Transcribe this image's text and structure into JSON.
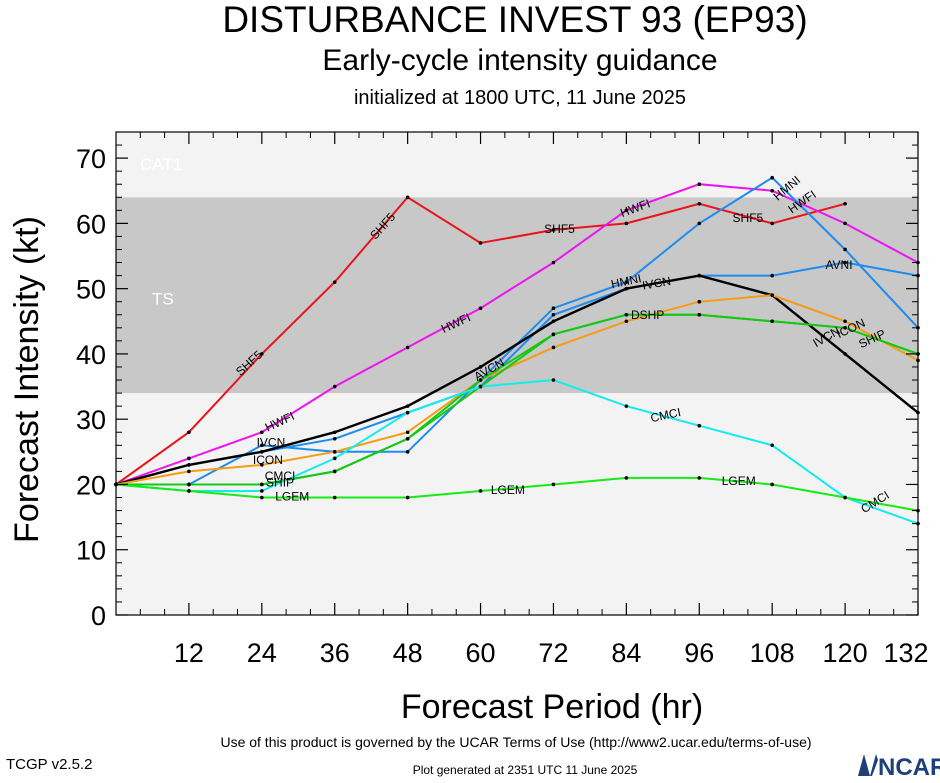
{
  "header": {
    "title": "DISTURBANCE INVEST 93 (EP93)",
    "subtitle": "Early-cycle intensity guidance",
    "init": "initialized at 1800 UTC, 11 June 2025"
  },
  "footer": {
    "terms": "Use of this product is governed by the UCAR Terms of Use (http://www2.ucar.edu/terms-of-use)",
    "version": "TCGP v2.5.2",
    "generated": "Plot generated at 2351 UTC   11 June 2025",
    "logo_text": "NCAR"
  },
  "chart_data": {
    "type": "line",
    "title": "DISTURBANCE INVEST 93 (EP93)",
    "xlabel": "Forecast Period (hr)",
    "ylabel": "Forecast Intensity (kt)",
    "xlim": [
      0,
      132
    ],
    "ylim": [
      0,
      70
    ],
    "xticks": [
      12,
      24,
      36,
      48,
      60,
      72,
      84,
      96,
      108,
      120,
      132
    ],
    "yticks": [
      0,
      10,
      20,
      30,
      40,
      50,
      60,
      70
    ],
    "bands": [
      {
        "label": "TS",
        "from": 34,
        "to": 64,
        "color": "#c8c8c8"
      },
      {
        "label": "CAT1",
        "from": 64,
        "to": 83,
        "color": "#f3f3f3"
      }
    ],
    "series": [
      {
        "name": "SHF5",
        "color": "#e8141a",
        "x": [
          0,
          12,
          24,
          36,
          48,
          60,
          72,
          84,
          96,
          108,
          120
        ],
        "y": [
          20,
          28,
          40,
          51,
          64,
          57,
          59,
          60,
          63,
          60,
          63
        ]
      },
      {
        "name": "HWFI",
        "color": "#ee14ee",
        "x": [
          0,
          12,
          24,
          36,
          48,
          60,
          72,
          84,
          96,
          108,
          120,
          132
        ],
        "y": [
          20,
          24,
          28,
          35,
          41,
          47,
          54,
          62,
          66,
          65,
          60,
          54
        ]
      },
      {
        "name": "HMNI",
        "color": "#1e8cee",
        "x": [
          0,
          12,
          24,
          36,
          48,
          60,
          72,
          84,
          96,
          108,
          120,
          132
        ],
        "y": [
          20,
          20,
          26,
          25,
          25,
          36,
          47,
          51,
          60,
          67,
          56,
          44
        ]
      },
      {
        "name": "AVNI",
        "color": "#1e8cee",
        "x": [
          0,
          12,
          24,
          36,
          48,
          60,
          72,
          84,
          96,
          108,
          120,
          132
        ],
        "y": [
          20,
          23,
          25,
          27,
          31,
          35,
          46,
          50,
          52,
          52,
          54,
          52
        ]
      },
      {
        "name": "IVCN",
        "color": "#000000",
        "x": [
          0,
          12,
          24,
          36,
          48,
          60,
          72,
          84,
          96,
          108,
          120,
          132
        ],
        "y": [
          20,
          23,
          25,
          28,
          32,
          38,
          45,
          50,
          52,
          49,
          40,
          31
        ]
      },
      {
        "name": "ICON",
        "color": "#f59c14",
        "x": [
          0,
          12,
          24,
          36,
          48,
          60,
          72,
          84,
          96,
          108,
          120,
          132
        ],
        "y": [
          20,
          22,
          23,
          25,
          28,
          36,
          41,
          45,
          48,
          49,
          45,
          39
        ]
      },
      {
        "name": "SHIP",
        "color": "#14c814",
        "x": [
          0,
          12,
          24,
          36,
          48,
          60,
          72,
          84,
          96,
          108,
          120,
          132
        ],
        "y": [
          20,
          20,
          20,
          22,
          27,
          36,
          43,
          46,
          46,
          45,
          44,
          40
        ]
      },
      {
        "name": "DSHP",
        "color": "#14c814",
        "x": [
          0,
          12,
          24,
          36,
          48,
          60,
          72,
          84,
          96,
          108,
          120,
          132
        ],
        "y": [
          20,
          20,
          20,
          22,
          27,
          35,
          43,
          46,
          46,
          45,
          44,
          40
        ]
      },
      {
        "name": "CMCI",
        "color": "#14ecec",
        "x": [
          0,
          12,
          24,
          36,
          48,
          60,
          72,
          84,
          96,
          108,
          120,
          132
        ],
        "y": [
          20,
          19,
          19,
          24,
          31,
          35,
          36,
          32,
          29,
          26,
          18,
          14
        ]
      },
      {
        "name": "LGEM",
        "color": "#14ec14",
        "x": [
          0,
          12,
          24,
          36,
          48,
          60,
          72,
          84,
          96,
          108,
          120,
          132
        ],
        "y": [
          20,
          19,
          18,
          18,
          18,
          19,
          20,
          21,
          21,
          20,
          18,
          16
        ]
      }
    ],
    "annotations": [
      {
        "text": "SHF5",
        "x": 22,
        "y": 38.5,
        "rot": -42
      },
      {
        "text": "SHF5",
        "x": 44,
        "y": 59.5,
        "rot": -48
      },
      {
        "text": "SHF5",
        "x": 73,
        "y": 59,
        "rot": 0
      },
      {
        "text": "SHF5",
        "x": 104,
        "y": 60.7,
        "rot": 0
      },
      {
        "text": "HWFI",
        "x": 27,
        "y": 29.5,
        "rot": -25
      },
      {
        "text": "HWFI",
        "x": 56,
        "y": 44.6,
        "rot": -25
      },
      {
        "text": "HWFI",
        "x": 85.5,
        "y": 62.2,
        "rot": -20
      },
      {
        "text": "HWFI",
        "x": 113,
        "y": 63.2,
        "rot": -35
      },
      {
        "text": "HMNI",
        "x": 110.5,
        "y": 65.3,
        "rot": -40
      },
      {
        "text": "HMNI",
        "x": 84,
        "y": 51,
        "rot": -12
      },
      {
        "text": "AVNI",
        "x": 119,
        "y": 53.5,
        "rot": 0
      },
      {
        "text": "IVCN",
        "x": 25.5,
        "y": 26.3,
        "rot": 0
      },
      {
        "text": "IVCN",
        "x": 89,
        "y": 50.7,
        "rot": -10
      },
      {
        "text": "IVCN",
        "x": 117,
        "y": 42.5,
        "rot": -30
      },
      {
        "text": "ICON",
        "x": 25,
        "y": 23.6,
        "rot": 0
      },
      {
        "text": "ICON",
        "x": 121,
        "y": 43.8,
        "rot": -25
      },
      {
        "text": "AVCN",
        "x": 61.5,
        "y": 37.5,
        "rot": -30
      },
      {
        "text": "CMCI",
        "x": 27,
        "y": 21.2,
        "rot": 0
      },
      {
        "text": "CMCI",
        "x": 90.5,
        "y": 30.5,
        "rot": -12
      },
      {
        "text": "CMCI",
        "x": 125,
        "y": 17.2,
        "rot": -32
      },
      {
        "text": "SHIP",
        "x": 27,
        "y": 20.2,
        "rot": 0
      },
      {
        "text": "DSHP",
        "x": 87.5,
        "y": 45.8,
        "rot": 0
      },
      {
        "text": "SHIP",
        "x": 124.5,
        "y": 42.2,
        "rot": -25
      },
      {
        "text": "LGEM",
        "x": 29,
        "y": 18,
        "rot": 0
      },
      {
        "text": "LGEM",
        "x": 64.5,
        "y": 19,
        "rot": 0
      },
      {
        "text": "LGEM",
        "x": 102.5,
        "y": 20.4,
        "rot": 0
      }
    ]
  }
}
